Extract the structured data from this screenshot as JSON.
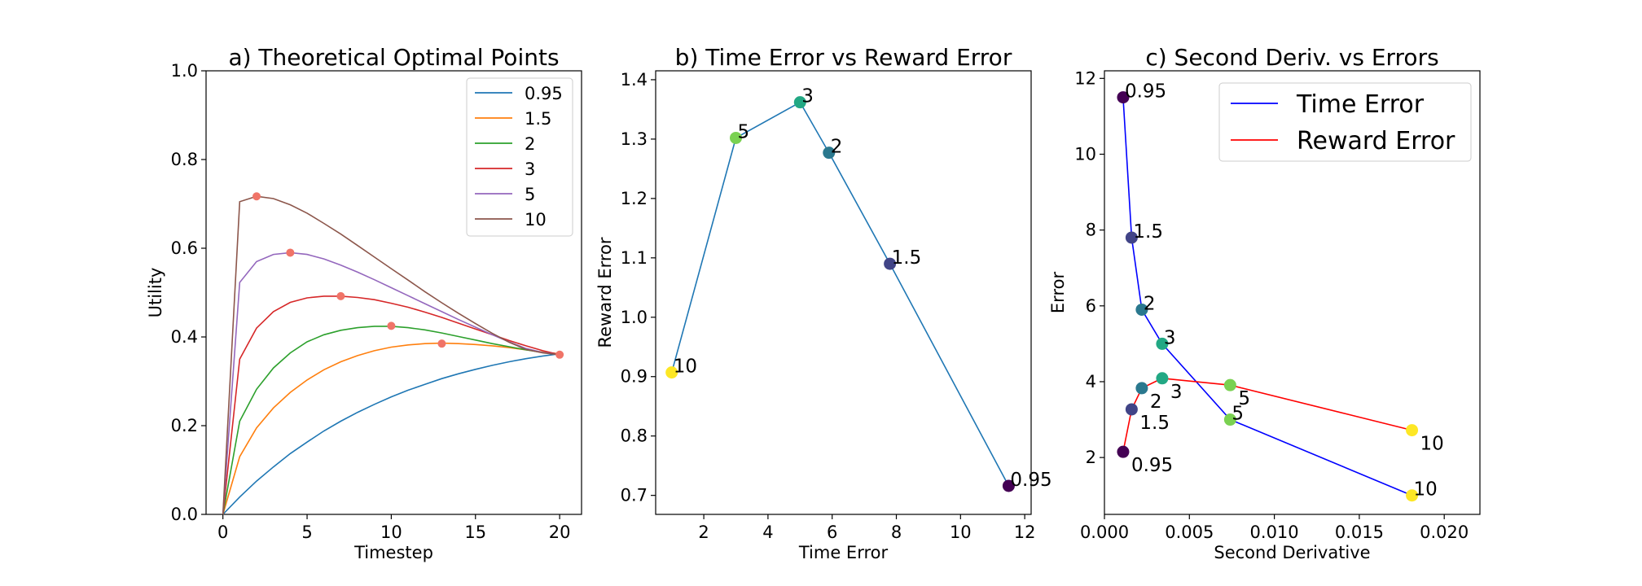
{
  "chart_data": [
    {
      "type": "line",
      "title": "a) Theoretical Optimal Points",
      "xlabel": "Timestep",
      "ylabel": "Utility",
      "xlim": [
        -1,
        21.3
      ],
      "ylim": [
        0,
        1.0
      ],
      "xticks": [
        0,
        5,
        10,
        15,
        20
      ],
      "xticklabels": [
        "0",
        "5",
        "10",
        "15",
        "20"
      ],
      "yticks": [
        0,
        0.2,
        0.4,
        0.6,
        0.8,
        1.0
      ],
      "yticklabels": [
        "0.0",
        "0.2",
        "0.4",
        "0.6",
        "0.8",
        "1.0"
      ],
      "legend": "top-right",
      "grid": false,
      "series": [
        {
          "name": "0.95",
          "color": "#1f77b4",
          "optimal_x": 20,
          "optimal_y": 0.36,
          "x": [
            0,
            1,
            2,
            3,
            4,
            5,
            6,
            7,
            8,
            9,
            10,
            11,
            12,
            13,
            14,
            15,
            16,
            17,
            18,
            19,
            20
          ],
          "y": [
            0,
            0.039,
            0.075,
            0.107,
            0.137,
            0.163,
            0.188,
            0.21,
            0.23,
            0.248,
            0.265,
            0.28,
            0.293,
            0.306,
            0.317,
            0.327,
            0.336,
            0.344,
            0.351,
            0.357,
            0.362
          ]
        },
        {
          "name": "1.5",
          "color": "#ff7f0e",
          "optimal_x": 13,
          "optimal_y": 0.385,
          "x": [
            0,
            1,
            2,
            3,
            4,
            5,
            6,
            7,
            8,
            9,
            10,
            11,
            12,
            13,
            14,
            15,
            16,
            17,
            18,
            19,
            20
          ],
          "y": [
            0,
            0.13,
            0.195,
            0.24,
            0.275,
            0.303,
            0.326,
            0.344,
            0.358,
            0.369,
            0.377,
            0.382,
            0.385,
            0.386,
            0.385,
            0.383,
            0.38,
            0.376,
            0.371,
            0.366,
            0.362
          ]
        },
        {
          "name": "2",
          "color": "#2ca02c",
          "optimal_x": 10,
          "optimal_y": 0.425,
          "x": [
            0,
            1,
            2,
            3,
            4,
            5,
            6,
            7,
            8,
            9,
            10,
            11,
            12,
            13,
            14,
            15,
            16,
            17,
            18,
            19,
            20
          ],
          "y": [
            0,
            0.21,
            0.282,
            0.33,
            0.364,
            0.389,
            0.405,
            0.415,
            0.421,
            0.424,
            0.424,
            0.421,
            0.416,
            0.409,
            0.401,
            0.393,
            0.385,
            0.378,
            0.371,
            0.365,
            0.36
          ]
        },
        {
          "name": "3",
          "color": "#d62728",
          "optimal_x": 7,
          "optimal_y": 0.492,
          "x": [
            0,
            1,
            2,
            3,
            4,
            5,
            6,
            7,
            8,
            9,
            10,
            11,
            12,
            13,
            14,
            15,
            16,
            17,
            18,
            19,
            20
          ],
          "y": [
            0,
            0.35,
            0.42,
            0.457,
            0.478,
            0.488,
            0.492,
            0.492,
            0.489,
            0.484,
            0.476,
            0.467,
            0.456,
            0.444,
            0.431,
            0.418,
            0.405,
            0.392,
            0.38,
            0.369,
            0.36
          ]
        },
        {
          "name": "5",
          "color": "#9467bd",
          "optimal_x": 4,
          "optimal_y": 0.59,
          "x": [
            0,
            1,
            2,
            3,
            4,
            5,
            6,
            7,
            8,
            9,
            10,
            11,
            12,
            13,
            14,
            15,
            16,
            17,
            18,
            19,
            20
          ],
          "y": [
            0,
            0.523,
            0.57,
            0.586,
            0.59,
            0.586,
            0.576,
            0.562,
            0.546,
            0.529,
            0.511,
            0.493,
            0.475,
            0.457,
            0.439,
            0.422,
            0.405,
            0.389,
            0.374,
            0.365,
            0.36
          ]
        },
        {
          "name": "10",
          "color": "#8c564b",
          "optimal_x": 2,
          "optimal_y": 0.717,
          "x": [
            0,
            1,
            2,
            3,
            4,
            5,
            6,
            7,
            8,
            9,
            10,
            11,
            12,
            13,
            14,
            15,
            16,
            17,
            18,
            19,
            20
          ],
          "y": [
            0,
            0.705,
            0.717,
            0.712,
            0.698,
            0.679,
            0.656,
            0.632,
            0.606,
            0.58,
            0.554,
            0.528,
            0.502,
            0.477,
            0.453,
            0.43,
            0.408,
            0.388,
            0.372,
            0.364,
            0.36
          ]
        }
      ]
    },
    {
      "type": "scatter",
      "title": "b) Time Error vs Reward Error",
      "xlabel": "Time Error",
      "ylabel": "Reward Error",
      "xlim": [
        0.5,
        12.2
      ],
      "ylim": [
        0.668,
        1.415
      ],
      "xticks": [
        2,
        4,
        6,
        8,
        10,
        12
      ],
      "xticklabels": [
        "2",
        "4",
        "6",
        "8",
        "10",
        "12"
      ],
      "yticks": [
        0.7,
        0.8,
        0.9,
        1.0,
        1.1,
        1.2,
        1.3,
        1.4
      ],
      "yticklabels": [
        "0.7",
        "0.8",
        "0.9",
        "1.0",
        "1.1",
        "1.2",
        "1.3",
        "1.4"
      ],
      "line_color": "#1f77b4",
      "grid": false,
      "points": [
        {
          "label": "10",
          "x": 1.0,
          "y": 0.907,
          "color": "#fde725"
        },
        {
          "label": "5",
          "x": 3.0,
          "y": 1.302,
          "color": "#7ad151"
        },
        {
          "label": "3",
          "x": 5.0,
          "y": 1.362,
          "color": "#22a884"
        },
        {
          "label": "2",
          "x": 5.9,
          "y": 1.277,
          "color": "#2a788e"
        },
        {
          "label": "1.5",
          "x": 7.8,
          "y": 1.09,
          "color": "#414487"
        },
        {
          "label": "0.95",
          "x": 11.5,
          "y": 0.716,
          "color": "#440154"
        }
      ]
    },
    {
      "type": "line",
      "title": "c) Second Deriv. vs Errors",
      "xlabel": "Second Derivative",
      "ylabel": "Error",
      "xlim": [
        0,
        0.0221
      ],
      "ylim": [
        0.5,
        12.2
      ],
      "xticks": [
        0.0,
        0.005,
        0.01,
        0.015,
        0.02
      ],
      "xticklabels": [
        "0.000",
        "0.005",
        "0.010",
        "0.015",
        "0.020"
      ],
      "yticks": [
        2,
        4,
        6,
        8,
        10,
        12
      ],
      "yticklabels": [
        "2",
        "4",
        "6",
        "8",
        "10",
        "12"
      ],
      "legend": "top-right",
      "grid": false,
      "series": [
        {
          "name": "Time Error",
          "color": "#0000ff",
          "points": [
            {
              "label": "0.95",
              "x": 0.0011,
              "y": 11.5,
              "color": "#440154"
            },
            {
              "label": "1.5",
              "x": 0.0016,
              "y": 7.8,
              "color": "#414487"
            },
            {
              "label": "2",
              "x": 0.0022,
              "y": 5.9,
              "color": "#2a788e"
            },
            {
              "label": "3",
              "x": 0.0034,
              "y": 5.0,
              "color": "#22a884"
            },
            {
              "label": "5",
              "x": 0.0074,
              "y": 3.0,
              "color": "#7ad151"
            },
            {
              "label": "10",
              "x": 0.0181,
              "y": 1.0,
              "color": "#fde725"
            }
          ]
        },
        {
          "name": "Reward Error",
          "color": "#ff0000",
          "points": [
            {
              "label": "0.95",
              "x": 0.0011,
              "y": 2.15,
              "color": "#440154"
            },
            {
              "label": "1.5",
              "x": 0.0016,
              "y": 3.27,
              "color": "#414487"
            },
            {
              "label": "2",
              "x": 0.0022,
              "y": 3.83,
              "color": "#2a788e"
            },
            {
              "label": "3",
              "x": 0.0034,
              "y": 4.09,
              "color": "#22a884"
            },
            {
              "label": "5",
              "x": 0.0074,
              "y": 3.91,
              "color": "#7ad151"
            },
            {
              "label": "10",
              "x": 0.0181,
              "y": 2.72,
              "color": "#fde725"
            }
          ]
        }
      ]
    }
  ]
}
